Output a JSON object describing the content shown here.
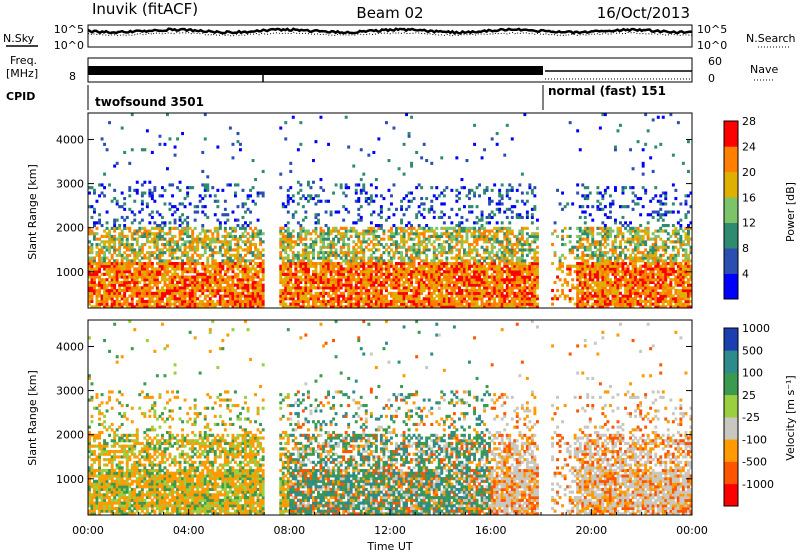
{
  "header": {
    "station": "Inuvik (fitACF)",
    "beam": "Beam 02",
    "date": "16/Oct/2013"
  },
  "top_panels": {
    "nsky_label": "N.Sky",
    "nsky_ticks": [
      "10^5",
      "10^0"
    ],
    "nsearch_label": "N.Search",
    "nsearch_ticks": [
      "10^5",
      "10^0"
    ],
    "freq_label_1": "Freq.",
    "freq_label_2": "[MHz]",
    "freq_ticks": [
      "8"
    ],
    "nave_label": "Nave",
    "nave_ticks": [
      "60",
      "0"
    ],
    "cpid_label": "CPID",
    "cpid_modes": [
      {
        "name": "twofsound 3501",
        "start_hour": 0,
        "end_hour": 18.1
      },
      {
        "name": "normal (fast) 151",
        "start_hour": 18.1,
        "end_hour": 24
      }
    ]
  },
  "chart_data": [
    {
      "type": "heatmap",
      "name": "power",
      "ylabel": "Slant Range [km]",
      "yticks": [
        1000,
        2000,
        3000,
        4000
      ],
      "ylim": [
        180,
        4600
      ],
      "xlim": [
        0,
        24
      ],
      "colorbar_label": "Power [dB]",
      "colorbar_ticks": [
        "4",
        "8",
        "12",
        "16",
        "20",
        "24",
        "28"
      ],
      "colors": [
        "#0000ff",
        "#2a4fb0",
        "#2e8b6f",
        "#7dc36a",
        "#e0b000",
        "#ff7f00",
        "#ff0000"
      ]
    },
    {
      "type": "heatmap",
      "name": "velocity",
      "ylabel": "Slant Range [km]",
      "yticks": [
        1000,
        2000,
        3000,
        4000
      ],
      "ylim": [
        180,
        4600
      ],
      "xlim": [
        0,
        24
      ],
      "xlabel": "Time UT",
      "xticks": [
        "00:00",
        "04:00",
        "08:00",
        "12:00",
        "16:00",
        "20:00",
        "00:00"
      ],
      "colorbar_label": "Velocity [m s⁻¹]",
      "colorbar_ticks": [
        "-1000",
        "-500",
        "-100",
        "-25",
        "25",
        "100",
        "500",
        "1000"
      ],
      "colors": [
        "#ff0000",
        "#ff5500",
        "#ff9a00",
        "#c8c8c0",
        "#9ad040",
        "#3a9a50",
        "#2e8b8b",
        "#1a3fb0"
      ]
    }
  ]
}
